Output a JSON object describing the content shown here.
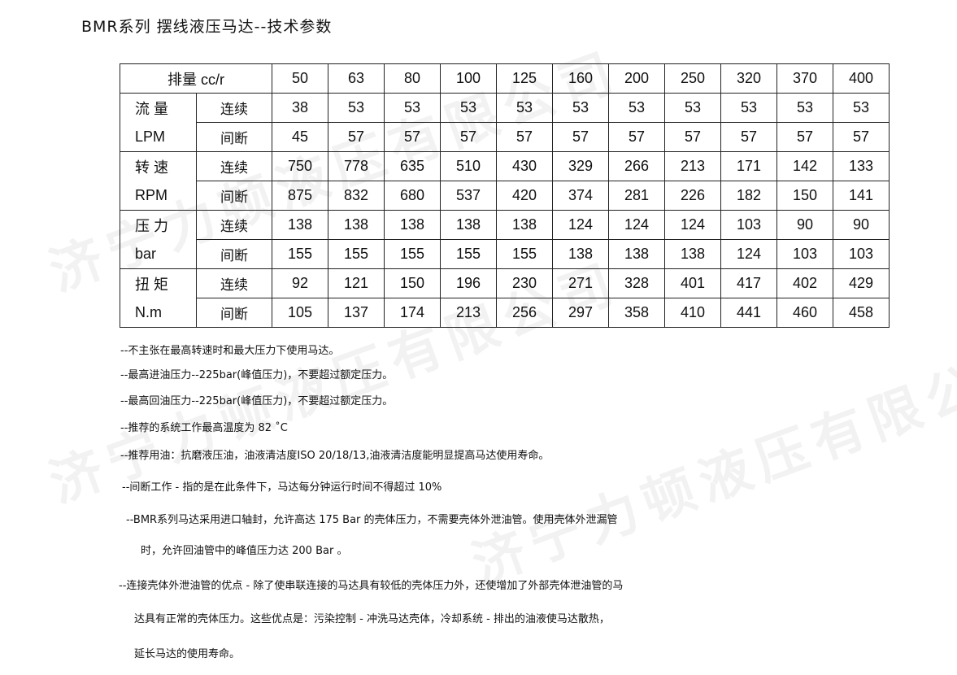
{
  "title": "BMR系列 摆线液压马达--技术参数",
  "watermark": "济宁力顿液压有限公司",
  "table": {
    "header_label": "排量 cc/r",
    "displacements": [
      "50",
      "63",
      "80",
      "100",
      "125",
      "160",
      "200",
      "250",
      "320",
      "370",
      "400"
    ],
    "groups": [
      {
        "name": "流 量",
        "unit": "LPM",
        "rows": [
          {
            "label": "连续",
            "values": [
              "38",
              "53",
              "53",
              "53",
              "53",
              "53",
              "53",
              "53",
              "53",
              "53",
              "53"
            ]
          },
          {
            "label": "间断",
            "values": [
              "45",
              "57",
              "57",
              "57",
              "57",
              "57",
              "57",
              "57",
              "57",
              "57",
              "57"
            ]
          }
        ]
      },
      {
        "name": "转 速",
        "unit": "RPM",
        "rows": [
          {
            "label": "连续",
            "values": [
              "750",
              "778",
              "635",
              "510",
              "430",
              "329",
              "266",
              "213",
              "171",
              "142",
              "133"
            ]
          },
          {
            "label": "间断",
            "values": [
              "875",
              "832",
              "680",
              "537",
              "420",
              "374",
              "281",
              "226",
              "182",
              "150",
              "141"
            ]
          }
        ]
      },
      {
        "name": "压 力",
        "unit": "bar",
        "rows": [
          {
            "label": "连续",
            "values": [
              "138",
              "138",
              "138",
              "138",
              "138",
              "124",
              "124",
              "124",
              "103",
              "90",
              "90"
            ]
          },
          {
            "label": "间断",
            "values": [
              "155",
              "155",
              "155",
              "155",
              "155",
              "138",
              "138",
              "138",
              "124",
              "103",
              "103"
            ]
          }
        ]
      },
      {
        "name": "扭 矩",
        "unit": "N.m",
        "rows": [
          {
            "label": "连续",
            "values": [
              "92",
              "121",
              "150",
              "196",
              "230",
              "271",
              "328",
              "401",
              "417",
              "402",
              "429"
            ]
          },
          {
            "label": "间断",
            "values": [
              "105",
              "137",
              "174",
              "213",
              "256",
              "297",
              "358",
              "410",
              "441",
              "460",
              "458"
            ]
          }
        ]
      }
    ]
  },
  "notes": [
    "--不主张在最高转速时和最大压力下使用马达。",
    "--最高进油压力--225bar(峰值压力)，不要超过额定压力。",
    "--最高回油压力--225bar(峰值压力)，不要超过额定压力。",
    "--推荐的系统工作最高温度为 82 ˚C",
    "--推荐用油：抗磨液压油，油液清洁度ISO 20/18/13,油液清洁度能明显提高马达使用寿命。",
    " --间断工作 - 指的是在此条件下，马达每分钟运行时间不得超过 10%",
    "  --BMR系列马达采用进口轴封，允许高达 175 Bar 的壳体压力，不需要壳体外泄油管。使用壳体外泄漏管",
    "时，允许回油管中的峰值压力达 200 Bar 。",
    "--连接壳体外泄油管的优点 - 除了使串联连接的马达具有较低的壳体压力外，还使增加了外部壳体泄油管的马",
    "达具有正常的壳体压力。这些优点是：污染控制 - 冲洗马达壳体，冷却系统 - 排出的油液使马达散热，",
    "延长马达的使用寿命。"
  ]
}
